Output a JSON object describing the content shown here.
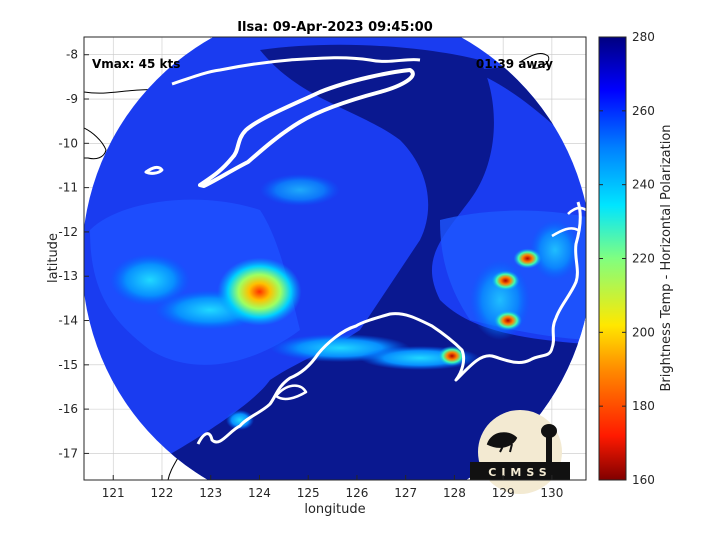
{
  "title": "Ilsa: 09-Apr-2023 09:45:00",
  "annotations": {
    "vmax": "Vmax: 45 kts",
    "away": "01:39 away"
  },
  "xlabel": "longitude",
  "ylabel": "latitude",
  "colorbar_label": "Brightness Temp - Horizontal Polarization",
  "logo_text": "CIMSS",
  "colors": {
    "ocean_warm": "#0a1a8c",
    "scan_bg": "#1a40f0",
    "coast": "#ffffff",
    "land_outline": "#000000"
  },
  "chart_data": {
    "type": "heatmap",
    "title": "Ilsa: 09-Apr-2023 09:45:00",
    "xlabel": "longitude",
    "ylabel": "latitude",
    "xlim": [
      120.4,
      130.7
    ],
    "ylim": [
      -17.6,
      -7.6
    ],
    "xticks": [
      121,
      122,
      123,
      124,
      125,
      126,
      127,
      128,
      129,
      130
    ],
    "yticks": [
      -8,
      -9,
      -10,
      -11,
      -12,
      -13,
      -14,
      -15,
      -16,
      -17
    ],
    "colorbar": {
      "min": 160,
      "max": 280,
      "ticks": [
        160,
        180,
        200,
        220,
        240,
        260,
        280
      ]
    },
    "swath_center": {
      "lon": 125.5,
      "lat": -12.3
    },
    "cold_spots": [
      {
        "lon": 124.0,
        "lat": -13.35,
        "value": 195
      },
      {
        "lon": 129.05,
        "lat": -13.1,
        "value": 175
      },
      {
        "lon": 129.1,
        "lat": -14.0,
        "value": 180
      },
      {
        "lon": 127.95,
        "lat": -14.8,
        "value": 185
      },
      {
        "lon": 129.5,
        "lat": -12.6,
        "value": 190
      }
    ],
    "grid": true
  }
}
